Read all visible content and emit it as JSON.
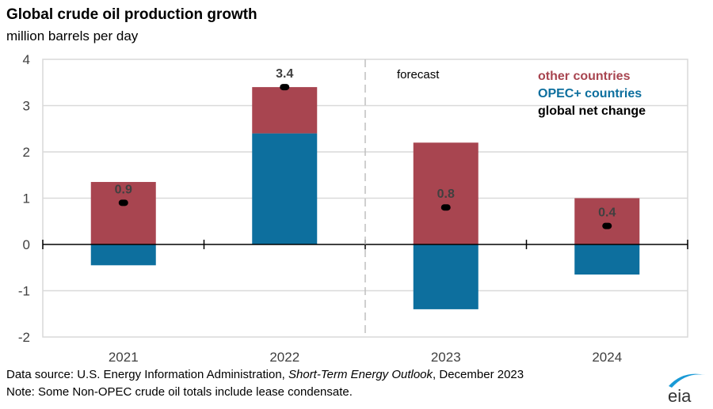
{
  "header": {
    "title": "Global crude oil production growth",
    "subtitle": "million barrels per day"
  },
  "footer": {
    "source_prefix": "Data source: U.S. Energy Information Administration, ",
    "source_italic": "Short-Term Energy Outlook",
    "source_suffix": ", December 2023",
    "note": "Note: Some Non-OPEC crude oil totals include lease condensate."
  },
  "logo": {
    "text": "eia",
    "icon": "eia-logo-arc-icon"
  },
  "colors": {
    "other": "#a84550",
    "opec": "#0d6f9e",
    "net": "#000000",
    "grid": "#d9d9d9",
    "forecast_line": "#bfbfbf"
  },
  "chart_data": {
    "type": "bar",
    "stacked": true,
    "title": "Global crude oil production growth",
    "ylabel": "million barrels per day",
    "xlabel": "",
    "categories": [
      "2021",
      "2022",
      "2023",
      "2024"
    ],
    "ylim": [
      -2,
      4
    ],
    "yticks": [
      -2,
      -1,
      0,
      1,
      2,
      3,
      4
    ],
    "ytick_labels": [
      "-2",
      "-1",
      "0",
      "1",
      "2",
      "3",
      "4"
    ],
    "grid": true,
    "series": [
      {
        "name": "OPEC+ countries",
        "color": "#0d6f9e",
        "values": [
          -0.45,
          2.4,
          -1.4,
          -0.65
        ]
      },
      {
        "name": "other countries",
        "color": "#a84550",
        "values": [
          1.35,
          1.0,
          2.2,
          1.0
        ]
      }
    ],
    "net_change": {
      "name": "global net change",
      "values": [
        0.9,
        3.4,
        0.8,
        0.4
      ],
      "labels": [
        "0.9",
        "3.4",
        "0.8",
        "0.4"
      ]
    },
    "forecast": {
      "label": "forecast",
      "starts_after_category": "2022"
    },
    "legend": {
      "placement": "top-right",
      "entries": [
        {
          "label": "other countries",
          "color": "#a84550"
        },
        {
          "label": "OPEC+ countries",
          "color": "#0d6f9e"
        },
        {
          "label": "global net change",
          "color": "#000000"
        }
      ]
    }
  }
}
